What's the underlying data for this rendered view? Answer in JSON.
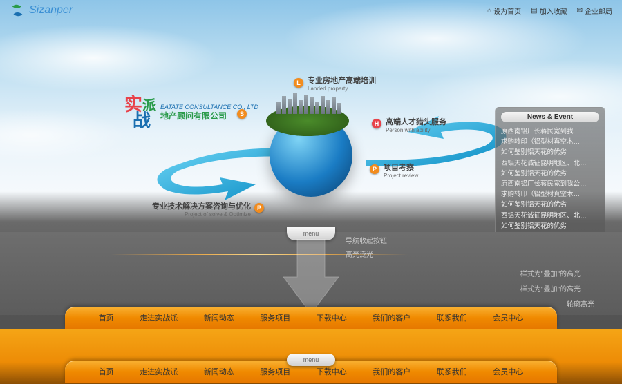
{
  "logo": {
    "text": "Sizanper",
    "color1": "#3a8fd4",
    "color2": "#2a9b4a"
  },
  "toplinks": [
    {
      "icon": "home",
      "label": "设为首页"
    },
    {
      "icon": "star",
      "label": "加入收藏"
    },
    {
      "icon": "mail",
      "label": "企业邮局"
    }
  ],
  "brand": {
    "char1": "实",
    "char2": "派",
    "char3": "战",
    "color1": "#e8424a",
    "color2": "#2a9b4a",
    "color3": "#1a6fb0",
    "en": "EATATE CONSULTANCE CO., LTD",
    "cn": "地产顾问有限公司"
  },
  "callouts": {
    "L": {
      "t": "专业房地产高端培训",
      "s": "Landed property"
    },
    "H": {
      "t": "高端人才猎头服务",
      "s": "Person with ability"
    },
    "P": {
      "t": "项目考察",
      "s": "Project review"
    },
    "O": {
      "t": "专业技术解决方案咨询与优化",
      "s": "Project of solve & Optimize"
    }
  },
  "news": {
    "title": "News & Event",
    "items": [
      "原西南铝厂长蒋民宽到我…",
      "求购转印（铝型材真空木…",
      "如何鉴别铝天花的优劣",
      "西铝天花诚征昆明地区、北…",
      "如何鉴别铝天花的优劣",
      "原西南铝厂长蒋民宽到我公…",
      "求购转印（铝型材真空木…",
      "如何鉴别铝天花的优劣",
      "西铝天花诚征昆明地区、北…",
      "如何鉴别铝天花的优劣"
    ]
  },
  "menu_label": "menu",
  "annots": {
    "a1": "导航收起按钮",
    "a2": "高光泛光",
    "a3": "样式为\"叠加\"的高光",
    "a4": "样式为\"叠加\"的高光",
    "a5": "轮廓高光"
  },
  "nav": [
    "首页",
    "走进实战派",
    "新闻动态",
    "服务项目",
    "下载中心",
    "我们的客户",
    "联系我们",
    "会员中心"
  ],
  "colors": {
    "orange": "#f28c1e",
    "green": "#2a9b4a",
    "blue": "#1a7cc4"
  }
}
